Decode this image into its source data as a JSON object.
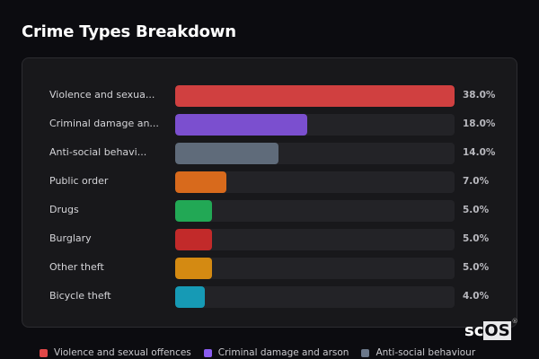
{
  "header": {
    "title": "Crime Types Breakdown"
  },
  "chart_data": {
    "type": "bar",
    "orientation": "horizontal",
    "title": "Crime Types Breakdown",
    "categories": [
      "Violence and sexual offences",
      "Criminal damage and arson",
      "Anti-social behaviour",
      "Public order",
      "Drugs",
      "Burglary",
      "Other theft",
      "Bicycle theft"
    ],
    "display_labels": [
      "Violence and sexua...",
      "Criminal damage an...",
      "Anti-social behavi...",
      "Public order",
      "Drugs",
      "Burglary",
      "Other theft",
      "Bicycle theft"
    ],
    "values": [
      38.0,
      18.0,
      14.0,
      7.0,
      5.0,
      5.0,
      5.0,
      4.0
    ],
    "value_labels": [
      "38.0%",
      "18.0%",
      "14.0%",
      "7.0%",
      "5.0%",
      "5.0%",
      "5.0%",
      "4.0%"
    ],
    "colors": [
      "#d04040",
      "#7b4fcf",
      "#5f6b7a",
      "#d86a1c",
      "#22a855",
      "#c22a2a",
      "#d48a12",
      "#169ab5"
    ],
    "unit": "%",
    "max_value": 38.0,
    "legend_position": "bottom",
    "grid": false
  },
  "legend": [
    {
      "label": "Violence and sexual offences",
      "color": "#e04848"
    },
    {
      "label": "Criminal damage and arson",
      "color": "#8a5cf0"
    },
    {
      "label": "Anti-social behaviour",
      "color": "#6b788a"
    }
  ],
  "logo": {
    "prefix": "sc",
    "boxed": "OS",
    "mark": "®"
  }
}
